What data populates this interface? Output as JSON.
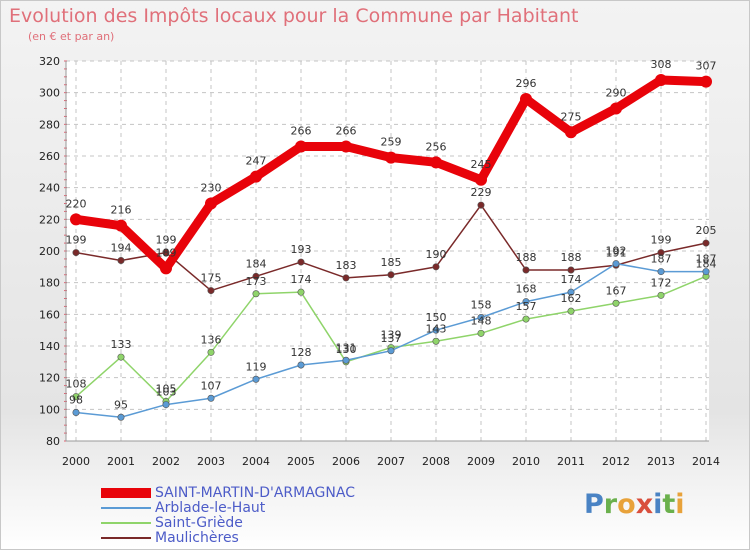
{
  "title": "Evolution des Impôts locaux pour la Commune par Habitant",
  "subtitle": "(en € et par an)",
  "logo": {
    "text": "Proxiti",
    "letters": [
      {
        "ch": "P",
        "color": "#4a83c4"
      },
      {
        "ch": "r",
        "color": "#6ab04c"
      },
      {
        "ch": "o",
        "color": "#e8a23a"
      },
      {
        "ch": "x",
        "color": "#d94e3c"
      },
      {
        "ch": "i",
        "color": "#4a83c4"
      },
      {
        "ch": "t",
        "color": "#6ab04c"
      },
      {
        "ch": "i",
        "color": "#e8a23a"
      }
    ]
  },
  "chart_data": {
    "type": "line",
    "title": "Evolution des Impôts locaux pour la Commune par Habitant",
    "subtitle": "(en € et par an)",
    "x": [
      2000,
      2001,
      2002,
      2003,
      2004,
      2005,
      2006,
      2007,
      2008,
      2009,
      2010,
      2011,
      2012,
      2013,
      2014
    ],
    "ylim": [
      80,
      320
    ],
    "yticks": [
      80,
      100,
      120,
      140,
      160,
      180,
      200,
      220,
      240,
      260,
      280,
      300,
      320
    ],
    "grid": true,
    "legend_position": "bottom-left",
    "series": [
      {
        "name": "SAINT-MARTIN-D'ARMAGNAC",
        "color": "#e8030a",
        "values": [
          220,
          216,
          189,
          230,
          247,
          266,
          266,
          259,
          256,
          245,
          296,
          275,
          290,
          308,
          307
        ],
        "labels": [
          "220",
          "216",
          "189",
          "230",
          "247",
          "266",
          "266",
          "259",
          "256",
          "245",
          "296",
          "275",
          "290",
          "308",
          "307"
        ]
      },
      {
        "name": "Arblade-le-Haut",
        "color": "#5b9bd5",
        "values": [
          98,
          95,
          103,
          107,
          119,
          128,
          131,
          137,
          150,
          158,
          168,
          174,
          192,
          187,
          187
        ],
        "labels": [
          "98",
          "95",
          "103",
          "107",
          "119",
          "128",
          "131",
          "137",
          "150",
          "158",
          "168",
          "174",
          "192",
          "187",
          "187"
        ]
      },
      {
        "name": "Saint-Griède",
        "color": "#8fd46a",
        "values": [
          108,
          133,
          105,
          136,
          173,
          174,
          130,
          139,
          143,
          148,
          157,
          162,
          167,
          172,
          184
        ],
        "labels": [
          "108",
          "133",
          "105",
          "136",
          "173",
          "174",
          "130",
          "139",
          "143",
          "148",
          "157",
          "162",
          "167",
          "172",
          "184"
        ]
      },
      {
        "name": "Maulichères",
        "color": "#7a2a2a",
        "values": [
          199,
          194,
          199,
          175,
          184,
          193,
          183,
          185,
          190,
          229,
          188,
          188,
          191,
          199,
          205
        ],
        "labels": [
          "199",
          "194",
          "199",
          "175",
          "184",
          "193",
          "183",
          "185",
          "190",
          "229",
          "188",
          "188",
          "191",
          "199",
          "205"
        ]
      }
    ]
  }
}
